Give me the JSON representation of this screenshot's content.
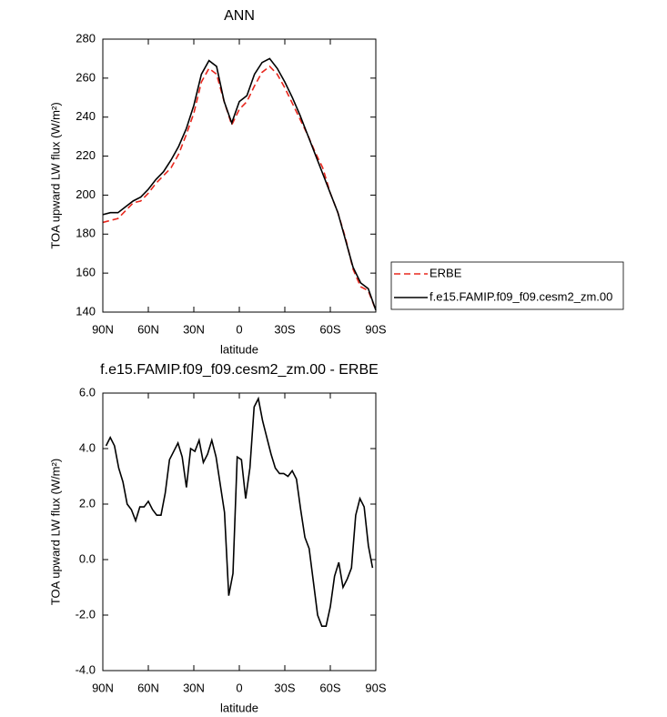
{
  "chart_data": [
    {
      "type": "line",
      "title": "ANN",
      "xlabel": "latitude",
      "ylabel": "TOA upward LW flux (W/m²)",
      "x": [
        90,
        85,
        80,
        75,
        70,
        65,
        60,
        55,
        50,
        45,
        40,
        35,
        30,
        25,
        20,
        15,
        10,
        5,
        0,
        -5,
        -10,
        -15,
        -20,
        -25,
        -30,
        -35,
        -40,
        -45,
        -50,
        -55,
        -60,
        -65,
        -70,
        -75,
        -80,
        -85,
        -90
      ],
      "series": [
        {
          "name": "ERBE",
          "color": "#e8281e",
          "dashed": true,
          "values": [
            186,
            187,
            188,
            192,
            196,
            197,
            201,
            206,
            210,
            214,
            221,
            231,
            242,
            258,
            265,
            262,
            248,
            236,
            244,
            248,
            256,
            263,
            266,
            262,
            255,
            247,
            239,
            231,
            222,
            214,
            201,
            191,
            178,
            162,
            153,
            151,
            141
          ]
        },
        {
          "name": "f.e15.FAMIP.f09_f09.cesm2_zm.00",
          "color": "#000000",
          "dashed": false,
          "values": [
            190,
            191,
            191,
            194,
            197,
            199,
            203,
            208,
            212,
            218,
            225,
            234,
            246,
            262,
            269,
            266,
            248,
            237,
            248,
            251,
            262,
            268,
            270,
            265,
            258,
            250,
            241,
            231,
            221,
            211,
            201,
            191,
            177,
            163,
            155,
            152,
            141
          ]
        }
      ],
      "xlim": [
        90,
        -90
      ],
      "xticks": [
        {
          "value": 90,
          "label": "90N"
        },
        {
          "value": 60,
          "label": "60N"
        },
        {
          "value": 30,
          "label": "30N"
        },
        0,
        {
          "value": -30,
          "label": "30S"
        },
        {
          "value": -60,
          "label": "60S"
        },
        {
          "value": -90,
          "label": "90S"
        }
      ],
      "ylim": [
        140,
        280
      ],
      "yticks": [
        140,
        160,
        180,
        200,
        220,
        240,
        260,
        280
      ],
      "grid": false,
      "legend": "right"
    },
    {
      "type": "line",
      "title": "f.e15.FAMIP.f09_f09.cesm2_zm.00 - ERBE",
      "xlabel": "latitude",
      "ylabel": "TOA upward LW flux (W/m²)",
      "x": [
        87.86,
        85.1,
        82.31,
        79.53,
        76.74,
        73.95,
        71.16,
        68.37,
        65.58,
        62.79,
        60,
        57.21,
        54.42,
        51.63,
        48.84,
        46.04,
        43.25,
        40.46,
        37.67,
        34.88,
        32.09,
        29.3,
        26.51,
        23.72,
        20.93,
        18.14,
        15.35,
        12.56,
        9.77,
        6.98,
        4.19,
        1.4,
        -1.4,
        -4.19,
        -6.98,
        -9.77,
        -12.56,
        -15.35,
        -18.14,
        -20.93,
        -23.72,
        -26.51,
        -29.3,
        -32.09,
        -34.88,
        -37.67,
        -40.46,
        -43.25,
        -46.04,
        -48.84,
        -51.63,
        -54.42,
        -57.21,
        -60,
        -62.79,
        -65.58,
        -68.37,
        -71.16,
        -73.95,
        -76.74,
        -79.53,
        -82.31,
        -85.1,
        -87.86
      ],
      "values": [
        4.1,
        4.4,
        4.1,
        3.3,
        2.8,
        2.0,
        1.8,
        1.4,
        1.9,
        1.9,
        2.1,
        1.8,
        1.6,
        1.6,
        2.4,
        3.6,
        3.9,
        4.2,
        3.7,
        2.6,
        4.0,
        3.9,
        4.3,
        3.5,
        3.8,
        4.3,
        3.7,
        2.7,
        1.7,
        -1.3,
        -0.5,
        3.7,
        3.6,
        2.2,
        3.3,
        5.5,
        5.8,
        5.0,
        4.4,
        3.8,
        3.3,
        3.1,
        3.1,
        3.0,
        3.2,
        2.9,
        1.8,
        0.8,
        0.4,
        -0.8,
        -2.0,
        -2.4,
        -2.4,
        -1.7,
        -0.6,
        -0.1,
        -1.0,
        -0.7,
        -0.3,
        1.6,
        2.2,
        1.9,
        0.5,
        -0.3
      ],
      "color": "#000000",
      "xlim": [
        90,
        -90
      ],
      "xticks": [
        {
          "value": 90,
          "label": "90N"
        },
        {
          "value": 60,
          "label": "60N"
        },
        {
          "value": 30,
          "label": "30N"
        },
        0,
        {
          "value": -30,
          "label": "30S"
        },
        {
          "value": -60,
          "label": "60S"
        },
        {
          "value": -90,
          "label": "90S"
        }
      ],
      "ylim": [
        -4,
        6
      ],
      "yticks": [
        {
          "value": -4,
          "label": "-4.0"
        },
        {
          "value": -2,
          "label": "-2.0"
        },
        {
          "value": 0,
          "label": "0.0"
        },
        {
          "value": 2,
          "label": "2.0"
        },
        {
          "value": 4,
          "label": "4.0"
        },
        {
          "value": 6,
          "label": "6.0"
        }
      ],
      "grid": false
    }
  ]
}
